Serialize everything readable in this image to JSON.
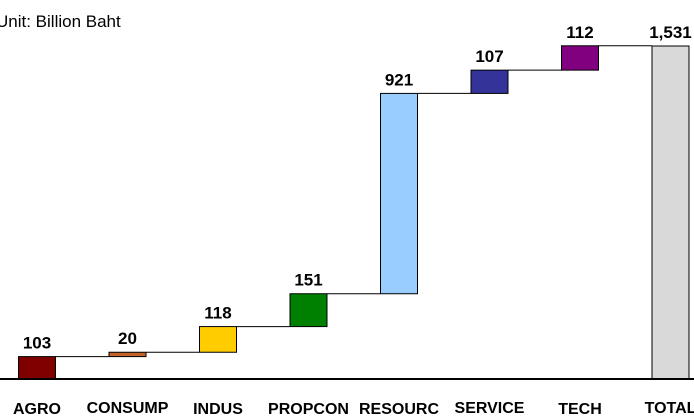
{
  "chart_data": {
    "type": "bar",
    "subtype": "waterfall",
    "unit_label": "Unit: Billion Baht",
    "categories": [
      "AGRO",
      "CONSUMP",
      "INDUS",
      "PROPCON",
      "RESOURC",
      "SERVICE",
      "TECH",
      "TOTAL"
    ],
    "values": [
      103,
      20,
      118,
      151,
      921,
      107,
      112,
      1531
    ],
    "value_labels": [
      "103",
      "20",
      "118",
      "151",
      "921",
      "107",
      "112",
      "1,531"
    ],
    "total_index": 7,
    "colors": [
      "#800000",
      "#c0622a",
      "#ffcc00",
      "#008000",
      "#99ccff",
      "#333399",
      "#800080",
      "#d9d9d9"
    ],
    "ylim": [
      0,
      1531
    ],
    "grid": false,
    "legend": "none"
  }
}
